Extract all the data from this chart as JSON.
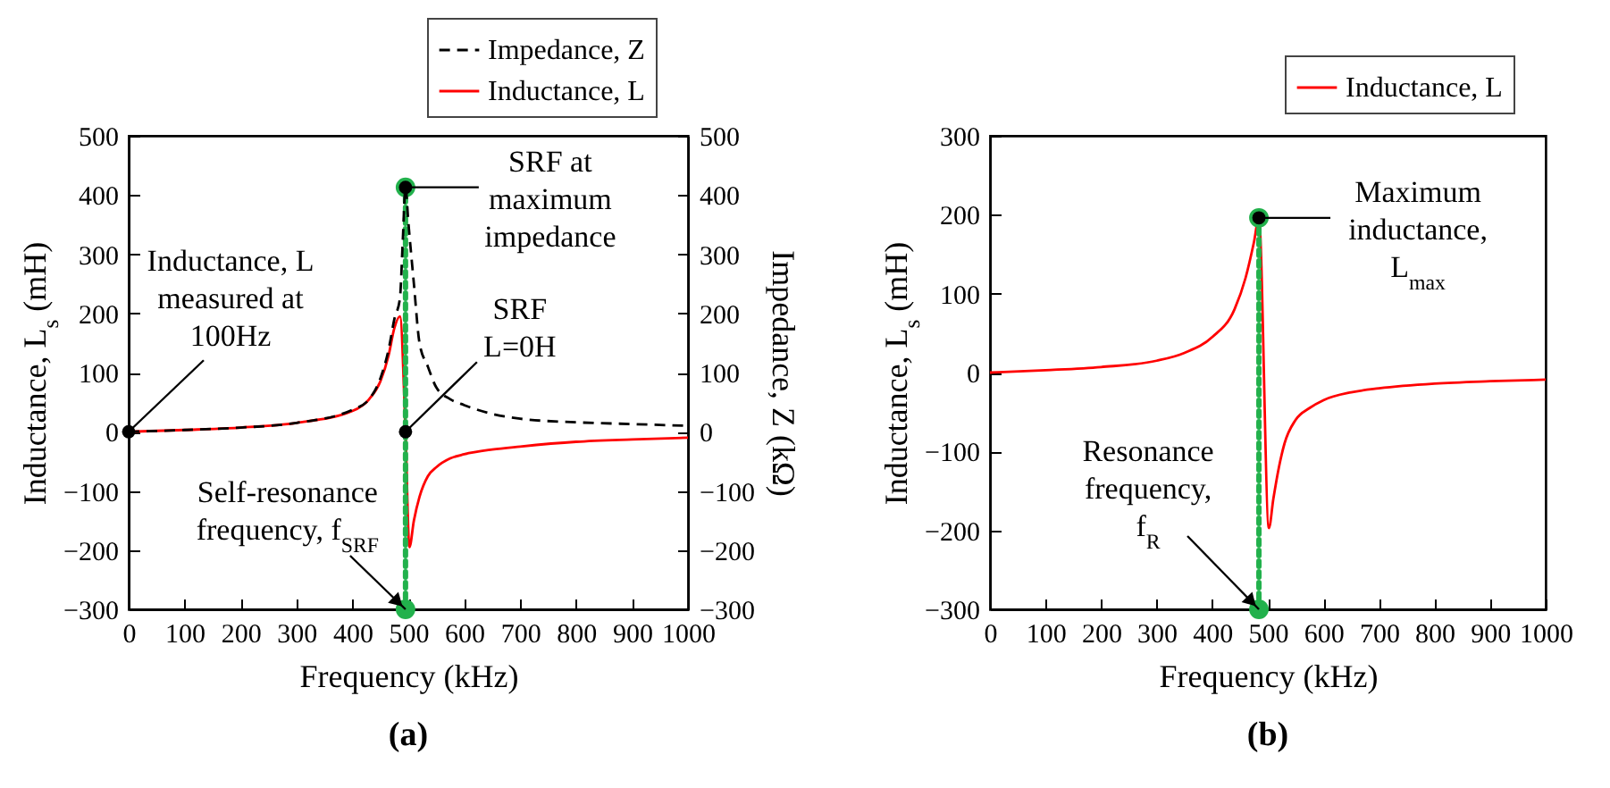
{
  "chart_data": [
    {
      "type": "line",
      "title": "(a)",
      "xlabel": "Frequency (kHz)",
      "ylabel": "Inductance, L$_{s}$ (mH)",
      "y2label": "Impedance, Z (kΩ)",
      "xlim": [
        0,
        1000
      ],
      "xticks": [
        0,
        100,
        200,
        300,
        400,
        500,
        600,
        700,
        800,
        900,
        1000
      ],
      "ylim": [
        -300,
        500
      ],
      "yticks": [
        -300,
        -200,
        -100,
        0,
        100,
        200,
        300,
        400,
        500
      ],
      "y2lim": [
        -300,
        500
      ],
      "y2ticks": [
        -300,
        -200,
        -100,
        0,
        100,
        200,
        300,
        400,
        500
      ],
      "legend": "top right",
      "series": [
        {
          "name": "Impedance, Z",
          "color": "#000000",
          "axis": "y2",
          "line_style": "dashed",
          "x": [
            0,
            100,
            200,
            300,
            400,
            430,
            450,
            465,
            475,
            485,
            490,
            495,
            500,
            510,
            520,
            535,
            550,
            575,
            600,
            650,
            700,
            800,
            900,
            1000
          ],
          "values": [
            0,
            3,
            7,
            15,
            37,
            55,
            90,
            140,
            190,
            225,
            320,
            413,
            355,
            250,
            150,
            110,
            75,
            55,
            45,
            30,
            22,
            16,
            13,
            10
          ]
        },
        {
          "name": "Inductance, L",
          "color": "#ff0000",
          "line_style": "solid",
          "x": [
            0,
            100,
            200,
            300,
            400,
            430,
            450,
            465,
            475,
            485,
            495,
            502,
            510,
            520,
            535,
            550,
            575,
            600,
            650,
            700,
            800,
            900,
            1000
          ],
          "values": [
            0,
            3,
            7,
            15,
            35,
            55,
            85,
            130,
            175,
            195,
            0,
            -195,
            -150,
            -110,
            -75,
            -60,
            -45,
            -38,
            -30,
            -25,
            -17,
            -13,
            -10
          ]
        },
        {
          "type": "line",
          "color": "#22b14c",
          "line_style": "dotted",
          "marker": "circle",
          "x": [
            495,
            495
          ],
          "values": [
            -300,
            413
          ]
        },
        {
          "type": "scatter",
          "color": "#000000",
          "marker": "circle",
          "x": [
            0,
            495,
            495
          ],
          "values": [
            0,
            0,
            413
          ]
        }
      ],
      "annotations": [
        {
          "text": "Inductance, L\nmeasured at\n100Hz",
          "x": 0,
          "y": 0
        },
        {
          "text": "SRF at\nmaximum\nimpedance",
          "x": 495,
          "y": 413
        },
        {
          "text": "SRF\nL=0H",
          "x": 495,
          "y": 0
        },
        {
          "text": "Self-resonance\nfrequency, f$_{SRF}$",
          "x": 495,
          "y": -300
        }
      ]
    },
    {
      "type": "line",
      "title": "(b)",
      "xlabel": "Frequency (kHz)",
      "ylabel": "Inductance, L$_{s}$ (mH)",
      "xlim": [
        0,
        1000
      ],
      "xticks": [
        0,
        100,
        200,
        300,
        400,
        500,
        600,
        700,
        800,
        900,
        1000
      ],
      "ylim": [
        -300,
        300
      ],
      "yticks": [
        -300,
        -200,
        -100,
        0,
        100,
        200,
        300
      ],
      "legend": "top right",
      "series": [
        {
          "name": "Inductance, L",
          "color": "#ff0000",
          "line_style": "solid",
          "x": [
            0,
            100,
            200,
            300,
            350,
            400,
            440,
            460,
            475,
            484,
            502,
            510,
            520,
            530,
            550,
            575,
            600,
            650,
            700,
            800,
            900,
            1000
          ],
          "values": [
            0,
            3,
            7,
            15,
            25,
            45,
            80,
            120,
            165,
            196,
            -197,
            -160,
            -120,
            -90,
            -60,
            -45,
            -35,
            -25,
            -20,
            -14,
            -11,
            -9
          ]
        },
        {
          "type": "line",
          "color": "#22b14c",
          "line_style": "dotted",
          "marker": "circle",
          "x": [
            484,
            484
          ],
          "values": [
            -300,
            196
          ]
        },
        {
          "type": "scatter",
          "color": "#000000",
          "marker": "circle",
          "x": [
            484
          ],
          "values": [
            196
          ]
        }
      ],
      "annotations": [
        {
          "text": "Maximum\ninductance,\nL$_{max}$",
          "x": 484,
          "y": 196
        },
        {
          "text": "Resonance\nfrequency,\nf$_{R}$",
          "x": 484,
          "y": -300
        }
      ]
    }
  ]
}
